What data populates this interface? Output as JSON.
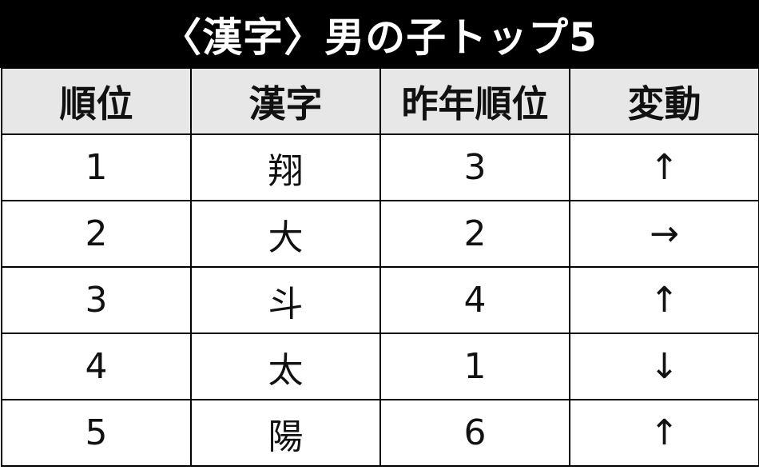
{
  "title": "〈漢字〉男の子トップ5",
  "table": {
    "headers": [
      "順位",
      "漢字",
      "昨年順位",
      "変動"
    ],
    "rows": [
      [
        "1",
        "翔",
        "3",
        "↑"
      ],
      [
        "2",
        "大",
        "2",
        "→"
      ],
      [
        "3",
        "斗",
        "4",
        "↑"
      ],
      [
        "4",
        "太",
        "1",
        "↓"
      ],
      [
        "5",
        "陽",
        "6",
        "↑"
      ]
    ]
  },
  "colors": {
    "title_bg": "#000000",
    "header_bg": "#e7e7e7"
  }
}
